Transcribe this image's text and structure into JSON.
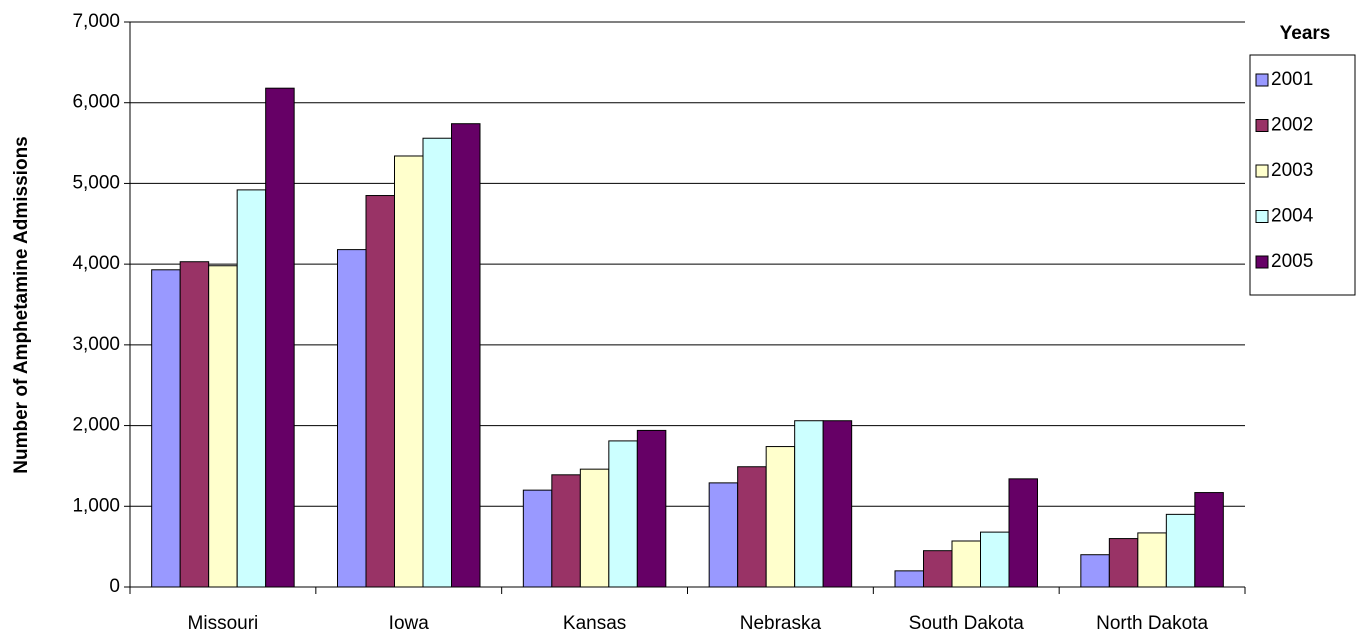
{
  "chart_data": {
    "type": "bar",
    "y_label": "Number of Amphetamine Admissions",
    "legend_title": "Years",
    "categories": [
      "Missouri",
      "Iowa",
      "Kansas",
      "Nebraska",
      "South Dakota",
      "North Dakota"
    ],
    "series": [
      {
        "name": "2001",
        "color": "#9999ff",
        "values": [
          3930,
          4180,
          1200,
          1290,
          200,
          400
        ]
      },
      {
        "name": "2002",
        "color": "#993366",
        "values": [
          4030,
          4850,
          1390,
          1490,
          450,
          600
        ]
      },
      {
        "name": "2003",
        "color": "#ffffcc",
        "values": [
          3980,
          5340,
          1460,
          1740,
          570,
          670
        ]
      },
      {
        "name": "2004",
        "color": "#ccffff",
        "values": [
          4920,
          5560,
          1810,
          2060,
          680,
          900
        ]
      },
      {
        "name": "2005",
        "color": "#660066",
        "values": [
          6180,
          5740,
          1940,
          2060,
          1340,
          1170
        ]
      }
    ],
    "ylim": [
      0,
      7000
    ],
    "yticks": [
      0,
      {
        "value": 1000,
        "label": "1,000"
      },
      {
        "value": 2000,
        "label": "2,000"
      },
      {
        "value": 3000,
        "label": "3,000"
      },
      {
        "value": 4000,
        "label": "4,000"
      },
      {
        "value": 5000,
        "label": "5,000"
      },
      {
        "value": 6000,
        "label": "6,000"
      },
      {
        "value": 7000,
        "label": "7,000"
      }
    ],
    "grid": true
  }
}
